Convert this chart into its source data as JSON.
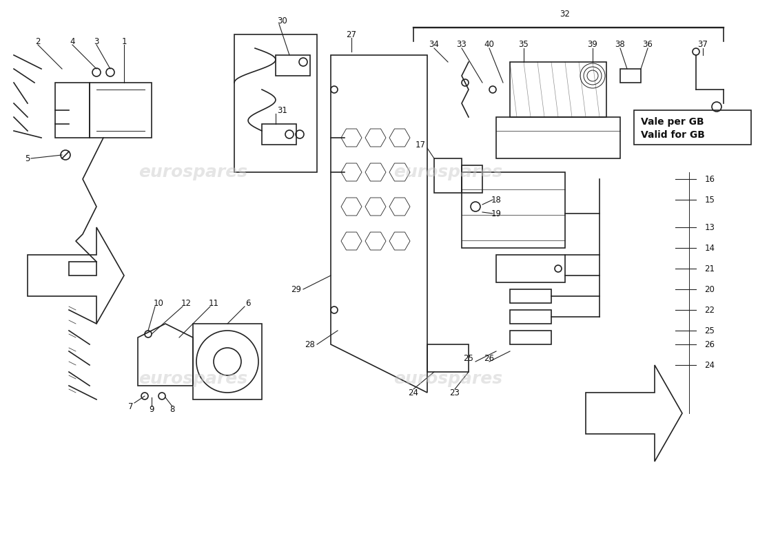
{
  "bg_color": "#f0f0f0",
  "watermark_text": "eurospares",
  "watermark_color": "#cccccc",
  "watermark_alpha": 0.5,
  "title": "",
  "vale_per_gb": "Vale per GB\nValid for GB",
  "part_numbers": [
    1,
    2,
    3,
    4,
    5,
    6,
    7,
    8,
    9,
    10,
    11,
    12,
    13,
    14,
    15,
    16,
    17,
    18,
    19,
    20,
    21,
    22,
    23,
    24,
    25,
    26,
    27,
    28,
    29,
    30,
    31,
    32,
    33,
    34,
    35,
    36,
    37,
    38,
    39,
    40
  ],
  "line_color": "#222222",
  "line_width": 1.2,
  "border_color": "#444444"
}
